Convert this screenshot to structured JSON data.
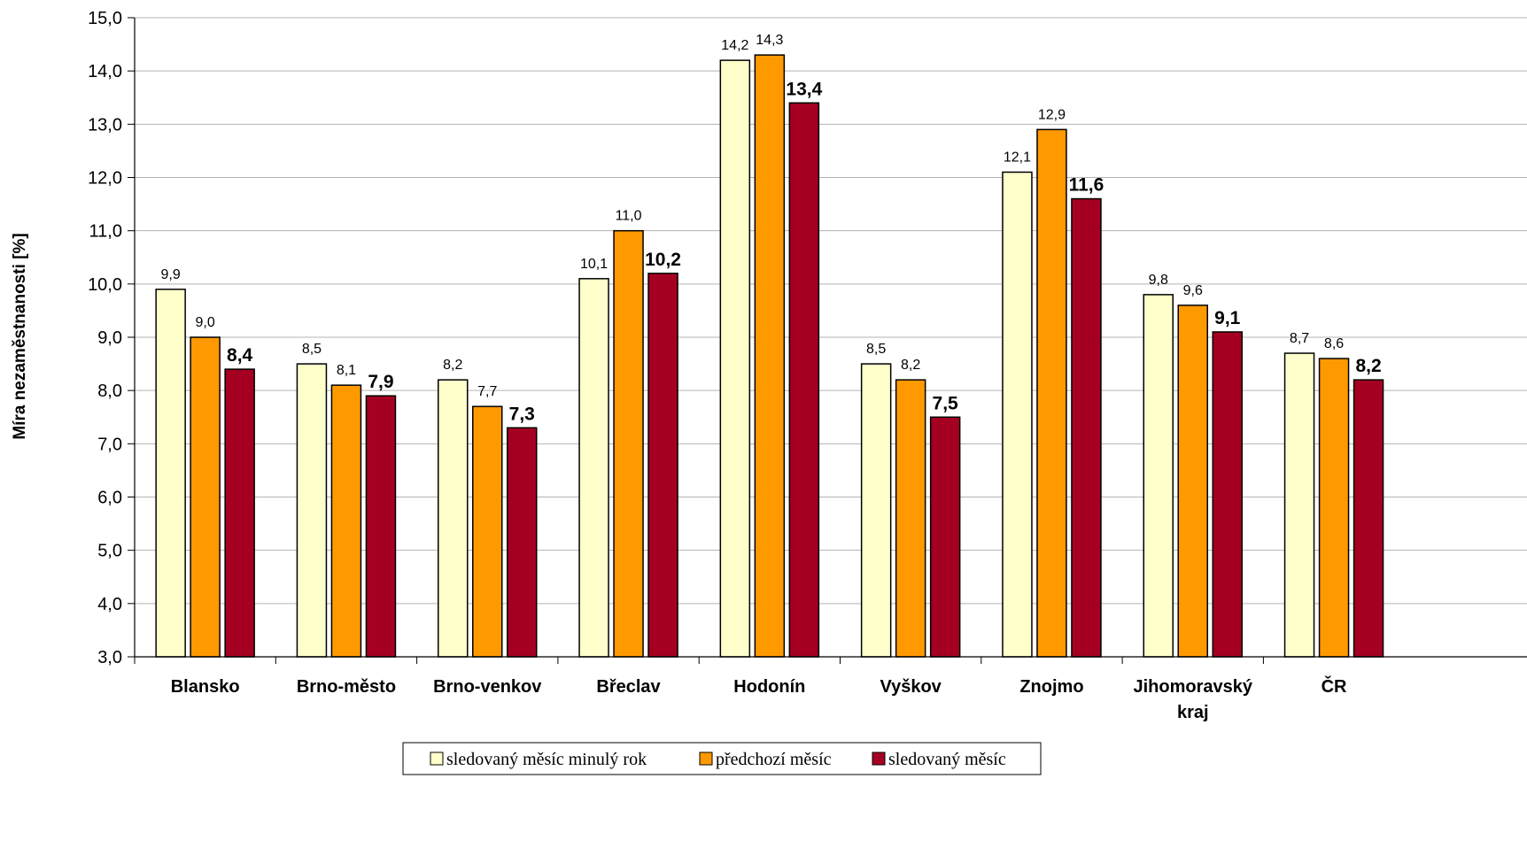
{
  "chart_data": {
    "type": "bar",
    "ylabel": "Míra nezaměstnanosti [%]",
    "xlabel": "",
    "ylim": [
      3.0,
      15.0
    ],
    "ytick_step": 1.0,
    "ytick_labels": [
      "3,0",
      "4,0",
      "5,0",
      "6,0",
      "7,0",
      "8,0",
      "9,0",
      "10,0",
      "11,0",
      "12,0",
      "13,0",
      "14,0",
      "15,0"
    ],
    "grid": true,
    "legend_position": "bottom",
    "categories": [
      "Blansko",
      "Brno-město",
      "Brno-venkov",
      "Břeclav",
      "Hodonín",
      "Vyškov",
      "Znojmo",
      "Jihomoravský kraj",
      "ČR"
    ],
    "category_lines": [
      [
        "Blansko"
      ],
      [
        "Brno-město"
      ],
      [
        "Brno-venkov"
      ],
      [
        "Břeclav"
      ],
      [
        "Hodonín"
      ],
      [
        "Vyškov"
      ],
      [
        "Znojmo"
      ],
      [
        "Jihomoravský",
        "kraj"
      ],
      [
        "ČR"
      ]
    ],
    "series": [
      {
        "name": "sledovaný měsíc minulý rok",
        "color": "#FFFFCC",
        "values": [
          9.9,
          8.5,
          8.2,
          10.1,
          14.2,
          8.5,
          12.1,
          9.8,
          8.7
        ],
        "labels": [
          "9,9",
          "8,5",
          "8,2",
          "10,1",
          "14,2",
          "8,5",
          "12,1",
          "9,8",
          "8,7"
        ],
        "label_style": "normal"
      },
      {
        "name": "předchozí měsíc",
        "color": "#FF9900",
        "values": [
          9.0,
          8.1,
          7.7,
          11.0,
          14.3,
          8.2,
          12.9,
          9.6,
          8.6
        ],
        "labels": [
          "9,0",
          "8,1",
          "7,7",
          "11,0",
          "14,3",
          "8,2",
          "12,9",
          "9,6",
          "8,6"
        ],
        "label_style": "normal"
      },
      {
        "name": "sledovaný měsíc",
        "color": "#A50021",
        "values": [
          8.4,
          7.9,
          7.3,
          10.2,
          13.4,
          7.5,
          11.6,
          9.1,
          8.2
        ],
        "labels": [
          "8,4",
          "7,9",
          "7,3",
          "10,2",
          "13,4",
          "7,5",
          "11,6",
          "9,1",
          "8,2"
        ],
        "label_style": "bold"
      }
    ]
  }
}
